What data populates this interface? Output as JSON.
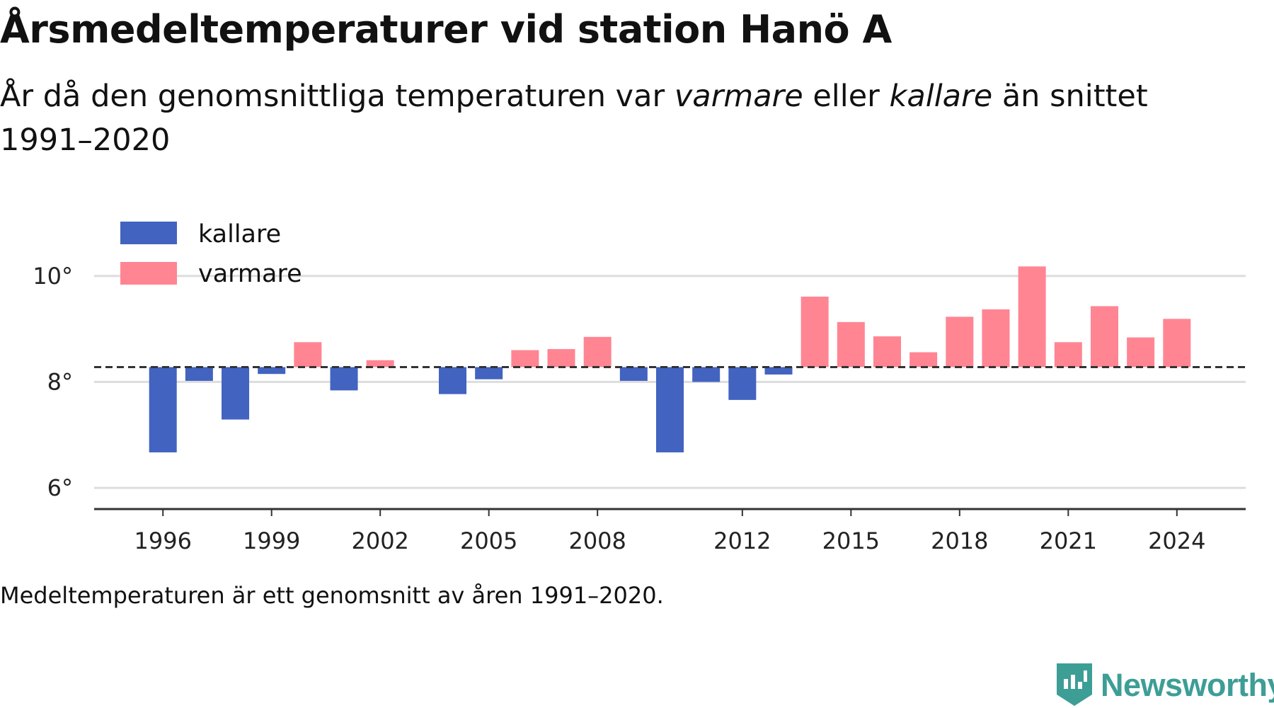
{
  "title": "Årsmedeltemperaturer vid station Hanö A",
  "subtitle": {
    "part1": "År då den genomsnittliga temperaturen var ",
    "em1": "varmare",
    "part2": " eller ",
    "em2": "kallare",
    "part3": " än snittet 1991–2020"
  },
  "footnote": "Medeltemperaturen är ett genomsnitt av åren 1991–2020.",
  "brand": "Newsworthy",
  "colors": {
    "cold": "#4263c0",
    "warm": "#ff8593",
    "grid": "#dddddd",
    "axis": "#333333",
    "brand": "#3d9e96"
  },
  "chart_data": {
    "type": "bar",
    "baseline": 8.28,
    "ylim": [
      5.6,
      11.2
    ],
    "xlim": [
      1994.1,
      2025.9
    ],
    "y_ticks": [
      6,
      8,
      10
    ],
    "y_tick_labels": [
      "6°",
      "8°",
      "10°"
    ],
    "x_ticks": [
      1996,
      1999,
      2002,
      2005,
      2008,
      2012,
      2015,
      2018,
      2021,
      2024
    ],
    "grid": true,
    "legend": {
      "position": "top-left",
      "items": [
        {
          "key": "cold",
          "label": "kallare"
        },
        {
          "key": "warm",
          "label": "varmare"
        }
      ]
    },
    "years": [
      1996,
      1997,
      1998,
      1999,
      2000,
      2001,
      2002,
      2004,
      2005,
      2006,
      2007,
      2008,
      2009,
      2010,
      2011,
      2012,
      2013,
      2014,
      2015,
      2016,
      2017,
      2018,
      2019,
      2020,
      2021,
      2022,
      2023,
      2024
    ],
    "values": [
      6.67,
      8.02,
      7.29,
      8.15,
      8.75,
      7.84,
      8.41,
      7.77,
      8.05,
      8.6,
      8.62,
      8.85,
      8.02,
      6.67,
      8.0,
      7.66,
      8.14,
      9.61,
      9.13,
      8.86,
      8.56,
      9.23,
      9.37,
      10.18,
      8.75,
      9.43,
      8.84,
      9.19
    ]
  }
}
